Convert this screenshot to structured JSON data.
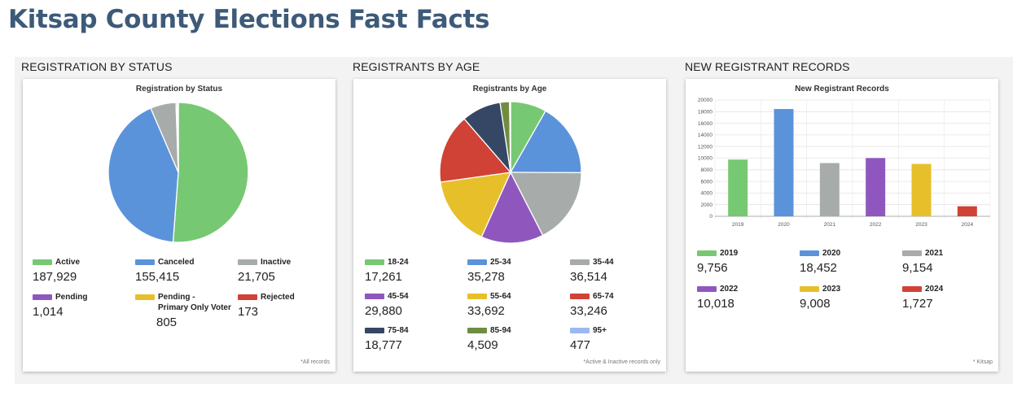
{
  "page": {
    "title": "Kitsap County Elections Fast Facts"
  },
  "colors": {
    "green": "#77c872",
    "blue": "#5b93db",
    "gray": "#a7aba9",
    "purple": "#8f57bd",
    "yellow": "#e6bf2b",
    "red": "#d04235",
    "navy": "#354764",
    "olive": "#6f8d42",
    "lightblue": "#9cb8f4"
  },
  "panels": [
    {
      "section": "Registration by Status",
      "chart_title": "Registration by Status",
      "footnote": "*All records",
      "legend": [
        {
          "label": "Active",
          "value": "187,929"
        },
        {
          "label": "Canceled",
          "value": "155,415"
        },
        {
          "label": "Inactive",
          "value": "21,705"
        },
        {
          "label": "Pending",
          "value": "1,014"
        },
        {
          "label": "Pending - Primary Only Voter",
          "value": "805"
        },
        {
          "label": "Rejected",
          "value": "173"
        }
      ]
    },
    {
      "section": "Registrants by Age",
      "chart_title": "Registrants by Age",
      "footnote": "*Active & Inactive records only",
      "legend": [
        {
          "label": "18-24",
          "value": "17,261"
        },
        {
          "label": "25-34",
          "value": "35,278"
        },
        {
          "label": "35-44",
          "value": "36,514"
        },
        {
          "label": "45-54",
          "value": "29,880"
        },
        {
          "label": "55-64",
          "value": "33,692"
        },
        {
          "label": "65-74",
          "value": "33,246"
        },
        {
          "label": "75-84",
          "value": "18,777"
        },
        {
          "label": "85-94",
          "value": "4,509"
        },
        {
          "label": "95+",
          "value": "477"
        }
      ]
    },
    {
      "section": "New Registrant Records",
      "chart_title": "New Registrant Records",
      "footnote": "* Kitsap",
      "legend": [
        {
          "label": "2019",
          "value": "9,756"
        },
        {
          "label": "2020",
          "value": "18,452"
        },
        {
          "label": "2021",
          "value": "9,154"
        },
        {
          "label": "2022",
          "value": "10,018"
        },
        {
          "label": "2023",
          "value": "9,008"
        },
        {
          "label": "2024",
          "value": "1,727"
        }
      ]
    }
  ],
  "chart_data": [
    {
      "type": "pie",
      "title": "Registration by Status",
      "categories": [
        "Active",
        "Canceled",
        "Inactive",
        "Pending",
        "Pending - Primary Only Voter",
        "Rejected"
      ],
      "values": [
        187929,
        155415,
        21705,
        1014,
        805,
        173
      ],
      "colors": [
        "#77c872",
        "#5b93db",
        "#a7aba9",
        "#8f57bd",
        "#e6bf2b",
        "#d04235"
      ]
    },
    {
      "type": "pie",
      "title": "Registrants by Age",
      "categories": [
        "18-24",
        "25-34",
        "35-44",
        "45-54",
        "55-64",
        "65-74",
        "75-84",
        "85-94",
        "95+"
      ],
      "values": [
        17261,
        35278,
        36514,
        29880,
        33692,
        33246,
        18777,
        4509,
        477
      ],
      "colors": [
        "#77c872",
        "#5b93db",
        "#a7aba9",
        "#8f57bd",
        "#e6bf2b",
        "#d04235",
        "#354764",
        "#6f8d42",
        "#9cb8f4"
      ]
    },
    {
      "type": "bar",
      "title": "New Registrant Records",
      "categories": [
        "2019",
        "2020",
        "2021",
        "2022",
        "2023",
        "2024"
      ],
      "values": [
        9756,
        18452,
        9154,
        10018,
        9008,
        1727
      ],
      "colors": [
        "#77c872",
        "#5b93db",
        "#a7aba9",
        "#8f57bd",
        "#e6bf2b",
        "#d04235"
      ],
      "ylim": [
        0,
        20000
      ],
      "yticks": [
        0,
        2000,
        4000,
        6000,
        8000,
        10000,
        12000,
        14000,
        16000,
        18000,
        20000
      ],
      "grid": true
    }
  ]
}
